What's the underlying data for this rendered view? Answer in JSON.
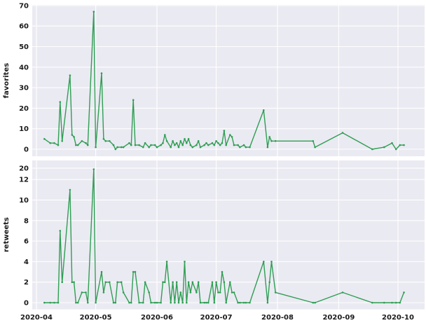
{
  "figure": {
    "background": "#ffffff",
    "axes_background": "#eaeaf2",
    "grid_color": "#ffffff",
    "line_color": "#2f9e53",
    "tick_color": "#1a1a1a"
  },
  "x_axis": {
    "tick_labels": [
      "2020-04",
      "2020-05",
      "2020-06",
      "2020-07",
      "2020-08",
      "2020-09",
      "2020-10"
    ],
    "tick_dates": [
      "2020-04-01",
      "2020-05-01",
      "2020-06-01",
      "2020-07-01",
      "2020-08-01",
      "2020-09-01",
      "2020-10-01"
    ],
    "xlim": [
      "2020-03-30",
      "2020-10-14"
    ]
  },
  "x_dates": [
    "2020-04-05",
    "2020-04-08",
    "2020-04-10",
    "2020-04-12",
    "2020-04-13",
    "2020-04-14",
    "2020-04-18",
    "2020-04-19",
    "2020-04-20",
    "2020-04-21",
    "2020-04-22",
    "2020-04-24",
    "2020-04-26",
    "2020-04-27",
    "2020-04-30",
    "2020-05-01",
    "2020-05-04",
    "2020-05-05",
    "2020-05-06",
    "2020-05-08",
    "2020-05-10",
    "2020-05-11",
    "2020-05-12",
    "2020-05-14",
    "2020-05-15",
    "2020-05-18",
    "2020-05-19",
    "2020-05-20",
    "2020-05-21",
    "2020-05-23",
    "2020-05-25",
    "2020-05-26",
    "2020-05-28",
    "2020-05-29",
    "2020-05-31",
    "2020-06-01",
    "2020-06-03",
    "2020-06-04",
    "2020-06-05",
    "2020-06-06",
    "2020-06-08",
    "2020-06-09",
    "2020-06-10",
    "2020-06-11",
    "2020-06-12",
    "2020-06-13",
    "2020-06-14",
    "2020-06-15",
    "2020-06-16",
    "2020-06-17",
    "2020-06-18",
    "2020-06-19",
    "2020-06-21",
    "2020-06-22",
    "2020-06-23",
    "2020-06-25",
    "2020-06-26",
    "2020-06-27",
    "2020-06-29",
    "2020-06-30",
    "2020-07-01",
    "2020-07-02",
    "2020-07-03",
    "2020-07-04",
    "2020-07-05",
    "2020-07-06",
    "2020-07-08",
    "2020-07-09",
    "2020-07-10",
    "2020-07-12",
    "2020-07-13",
    "2020-07-15",
    "2020-07-16",
    "2020-07-18",
    "2020-07-25",
    "2020-07-27",
    "2020-07-28",
    "2020-07-29",
    "2020-07-31",
    "2020-08-19",
    "2020-08-20",
    "2020-09-03",
    "2020-09-18",
    "2020-09-24",
    "2020-09-28",
    "2020-09-30",
    "2020-10-02",
    "2020-10-04"
  ],
  "chart_data": [
    {
      "type": "line",
      "title": "",
      "xlabel": "",
      "ylabel": "favorites",
      "ylim": [
        -3.4,
        70.4
      ],
      "yticks": [
        0,
        10,
        20,
        30,
        40,
        50,
        60,
        70
      ],
      "grid": true,
      "legend": null,
      "show_x_ticklabels": false,
      "series": [
        {
          "name": "favorites",
          "color": "#2f9e53",
          "values": [
            5,
            3,
            3,
            2,
            23,
            4,
            36,
            7,
            6,
            2,
            2,
            4,
            3,
            2,
            67,
            1,
            37,
            5,
            4,
            4,
            2,
            0,
            1,
            1,
            1,
            3,
            2,
            24,
            2,
            2,
            1,
            3,
            1,
            2,
            2,
            1,
            2,
            3,
            7,
            4,
            1,
            4,
            2,
            3,
            1,
            4,
            2,
            5,
            3,
            5,
            2,
            1,
            2,
            4,
            1,
            2,
            3,
            2,
            3,
            2,
            4,
            3,
            2,
            3,
            9,
            2,
            7,
            6,
            2,
            2,
            1,
            2,
            1,
            1,
            19,
            1,
            6,
            4,
            4,
            4,
            1,
            8,
            0,
            1,
            3,
            0,
            2,
            2
          ]
        }
      ]
    },
    {
      "type": "line",
      "title": "",
      "xlabel": "",
      "ylabel": "retweets",
      "ylim": [
        -0.65,
        13.85
      ],
      "yticks": [
        0,
        2,
        4,
        6,
        8,
        10,
        12
      ],
      "extra_ytick": {
        "value": 13.1,
        "label": "20"
      },
      "grid": true,
      "legend": null,
      "show_x_ticklabels": true,
      "series": [
        {
          "name": "retweets",
          "color": "#2f9e53",
          "values": [
            0,
            0,
            0,
            0,
            7,
            2,
            11,
            2,
            2,
            0,
            0,
            1,
            1,
            0,
            13,
            0,
            3,
            1,
            2,
            2,
            0,
            0,
            2,
            2,
            1,
            0,
            0,
            3,
            3,
            0,
            0,
            2,
            1,
            0,
            0,
            0,
            0,
            2,
            2,
            4,
            0,
            2,
            0,
            2,
            0,
            1,
            0,
            4,
            0,
            2,
            1,
            2,
            1,
            2,
            0,
            0,
            0,
            0,
            2,
            0,
            2,
            1,
            1,
            3,
            2,
            0,
            2,
            1,
            1,
            0,
            0,
            0,
            0,
            0,
            4,
            0,
            2,
            4,
            1,
            0,
            0,
            1,
            0,
            0,
            0,
            0,
            0,
            1
          ]
        }
      ]
    }
  ]
}
